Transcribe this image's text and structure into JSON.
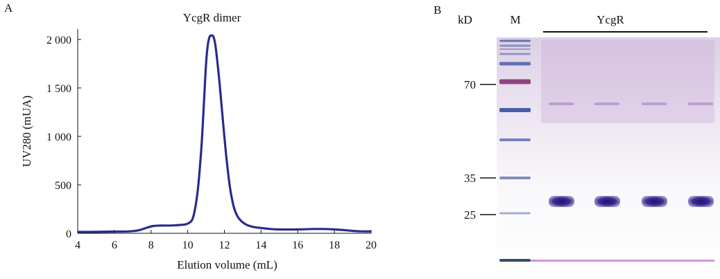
{
  "panels": {
    "a_label": "A",
    "b_label": "B"
  },
  "chart_data": {
    "type": "line",
    "title": "YcgR dimer",
    "xlabel": "Elution volume (mL)",
    "ylabel": "UV280 (mUA)",
    "xlim": [
      4,
      20
    ],
    "ylim": [
      0,
      2000
    ],
    "x_ticks": [
      "4",
      "6",
      "8",
      "10",
      "12",
      "14",
      "16",
      "18",
      "20"
    ],
    "y_ticks": [
      "0",
      "500",
      "1 000",
      "1 500",
      "2 000"
    ],
    "grid": false,
    "line_color": "#2a2a8c",
    "series": [
      {
        "x": [
          4.0,
          5.0,
          6.0,
          6.8,
          7.3,
          7.8,
          8.1,
          8.5,
          9.0,
          9.5,
          10.0,
          10.3,
          10.55,
          10.75,
          10.9,
          11.0,
          11.1,
          11.2,
          11.3,
          11.4,
          11.5,
          11.6,
          11.75,
          11.9,
          12.1,
          12.3,
          12.5,
          12.7,
          12.9,
          13.1,
          13.3,
          13.6,
          14.0,
          14.5,
          15.0,
          16.0,
          17.0,
          18.0,
          19.0,
          19.5,
          20.0
        ],
        "y": [
          15,
          15,
          18,
          20,
          30,
          60,
          75,
          80,
          80,
          85,
          100,
          170,
          450,
          900,
          1400,
          1750,
          1950,
          2030,
          2040,
          2030,
          1950,
          1800,
          1520,
          1200,
          800,
          480,
          280,
          180,
          130,
          100,
          80,
          65,
          55,
          45,
          40,
          40,
          45,
          40,
          25,
          20,
          20
        ]
      }
    ]
  },
  "gel": {
    "unit_label": "kD",
    "marker_lane_label": "M",
    "sample_label": "YcgR",
    "mw_markers": [
      "70",
      "35",
      "25"
    ],
    "marker_band_color": "#3e55a0",
    "sample_band_color": "#3a2e93",
    "smear_color": "#c9a8d8",
    "sample_lane_count": 4
  }
}
